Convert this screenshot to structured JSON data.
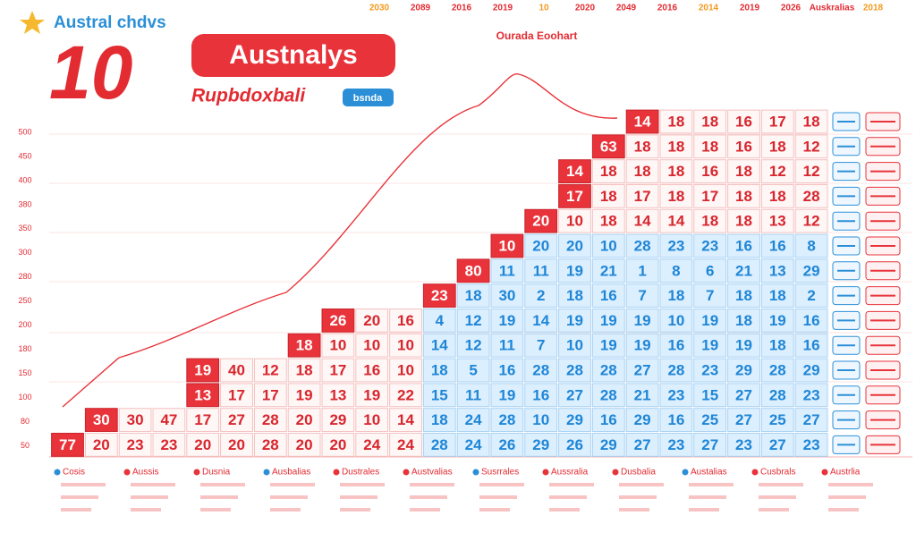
{
  "header": {
    "brand": "Austral chdvs",
    "big_number": "10",
    "badge": "Austnalys",
    "subtitle": "Rupbdoxbali",
    "pill": "bsnda",
    "nav": [
      "2030",
      "2089",
      "2016",
      "2019",
      "10",
      "2020",
      "2049",
      "2016",
      "2014",
      "2019",
      "2026",
      "Auskralias",
      "2018"
    ]
  },
  "chart_label": "Ourada Eoohart",
  "side_labels": [
    "500",
    "450",
    "400",
    "380",
    "350",
    "300",
    "280",
    "250",
    "200",
    "180",
    "150",
    "100",
    "80",
    "50"
  ],
  "grid": {
    "rows": [
      [
        14,
        18,
        18,
        16,
        17,
        18
      ],
      [
        63,
        18,
        18,
        18,
        16,
        18,
        12
      ],
      [
        14,
        18,
        18,
        18,
        16,
        18,
        12,
        12
      ],
      [
        17,
        18,
        17,
        18,
        17,
        18,
        18,
        28
      ],
      [
        20,
        10,
        18,
        14,
        14,
        18,
        18,
        13,
        12
      ],
      [
        10,
        20,
        20,
        10,
        28,
        23,
        23,
        16,
        16,
        8
      ],
      [
        80,
        11,
        11,
        19,
        21,
        1,
        8,
        6,
        21,
        13,
        29
      ],
      [
        23,
        18,
        30,
        2,
        18,
        16,
        7,
        18,
        7,
        18,
        18,
        2
      ],
      [
        26,
        20,
        16,
        4,
        12,
        19,
        14,
        19,
        19,
        19,
        10,
        19,
        18,
        19,
        16
      ],
      [
        18,
        10,
        10,
        10,
        14,
        12,
        11,
        7,
        10,
        19,
        19,
        16,
        19,
        19,
        18,
        16
      ],
      [
        19,
        40,
        12,
        18,
        17,
        16,
        10,
        18,
        5,
        16,
        28,
        28,
        28,
        27,
        28,
        23,
        29,
        28,
        29
      ],
      [
        13,
        17,
        17,
        19,
        13,
        19,
        22,
        15,
        11,
        19,
        16,
        27,
        28,
        21,
        23,
        15,
        27,
        28,
        23
      ],
      [
        30,
        30,
        47,
        17,
        27,
        28,
        20,
        29,
        10,
        14,
        18,
        24,
        28,
        10,
        29,
        16,
        29,
        16,
        25,
        27,
        25,
        27
      ],
      [
        77,
        20,
        23,
        23,
        20,
        20,
        28,
        20,
        20,
        24,
        24,
        28,
        24,
        26,
        29,
        26,
        29,
        27,
        23,
        27,
        23,
        27,
        23
      ]
    ]
  },
  "legend": [
    "Cosis",
    "Aussis",
    "Dusnia",
    "Ausbalias",
    "Dustrales",
    "Austvalias",
    "Susrrales",
    "Aussralia",
    "Dusbalia",
    "Austalias",
    "Cusbrals",
    "Austrlia"
  ]
}
